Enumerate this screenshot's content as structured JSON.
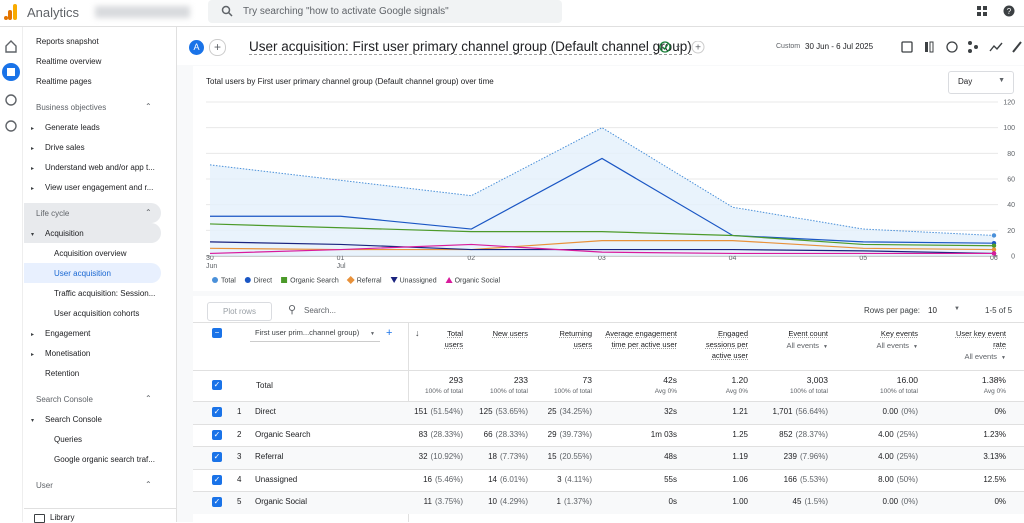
{
  "topbar": {
    "product": "Analytics",
    "search": "Try searching \"how to activate Google signals\""
  },
  "sidebar": {
    "top": [
      "Reports snapshot",
      "Realtime overview",
      "Realtime pages"
    ],
    "sections": [
      {
        "title": "Business objectives",
        "items": [
          {
            "label": "Generate leads",
            "children": []
          },
          {
            "label": "Drive sales",
            "children": []
          },
          {
            "label": "Understand web and/or app t...",
            "children": []
          },
          {
            "label": "View user engagement and r...",
            "children": []
          }
        ]
      },
      {
        "title": "Life cycle",
        "items": [
          {
            "label": "Acquisition",
            "children": [
              "Acquisition overview",
              "User acquisition",
              "Traffic acquisition: Session...",
              "User acquisition cohorts"
            ]
          },
          {
            "label": "Engagement",
            "children": []
          },
          {
            "label": "Monetisation",
            "children": []
          },
          {
            "label": "Retention"
          }
        ]
      },
      {
        "title": "Search Console",
        "items": [
          {
            "label": "Search Console",
            "children": [
              "Queries",
              "Google organic search traf..."
            ]
          }
        ]
      },
      {
        "title": "User",
        "items": []
      }
    ],
    "footer": "Library"
  },
  "header": {
    "title": "User acquisition: First user primary channel group (Default channel group)",
    "date_label": "Custom",
    "date_range": "30 Jun - 6 Jul 2025"
  },
  "chart_data": {
    "type": "line",
    "title": "Total users by First user primary channel group (Default channel group) over time",
    "interval": "Day",
    "categories": [
      "30 Jun",
      "01 Jul",
      "02",
      "03",
      "04",
      "05",
      "06"
    ],
    "ylim": [
      0,
      120
    ],
    "yticks": [
      0,
      20,
      40,
      60,
      80,
      100,
      120
    ],
    "grid": true,
    "series": [
      {
        "name": "Total",
        "color": "#4a90d9",
        "values": [
          71,
          59,
          47,
          100,
          38,
          21,
          16
        ]
      },
      {
        "name": "Direct",
        "color": "#1a56c4",
        "values": [
          31,
          31,
          21,
          76,
          16,
          11,
          10
        ]
      },
      {
        "name": "Organic Search",
        "color": "#4c9a2a",
        "values": [
          25,
          22,
          19,
          19,
          16,
          9,
          8
        ]
      },
      {
        "name": "Referral",
        "color": "#e8913a",
        "values": [
          6,
          5,
          5,
          12,
          12,
          6,
          5
        ]
      },
      {
        "name": "Unassigned",
        "color": "#1a237e",
        "values": [
          11,
          9,
          5,
          5,
          5,
          4,
          2
        ]
      },
      {
        "name": "Organic Social",
        "color": "#d81b9c",
        "values": [
          2,
          5,
          9,
          3,
          2,
          2,
          2
        ]
      }
    ]
  },
  "table": {
    "plot_rows": "Plot rows",
    "search": "Search...",
    "rows_per_page_label": "Rows per page:",
    "rows_per_page": "10",
    "pagination": "1-5 of 5",
    "dimension": "First user prim...channel group)",
    "columns": [
      {
        "label": "Total users"
      },
      {
        "label": "New users"
      },
      {
        "label": "Returning users"
      },
      {
        "label": "Average engagement time per active user"
      },
      {
        "label": "Engaged sessions per active user"
      },
      {
        "label": "Event count",
        "filter": "All events"
      },
      {
        "label": "Key events",
        "filter": "All events"
      },
      {
        "label": "User key event rate",
        "filter": "All events"
      }
    ],
    "totals": {
      "label": "Total",
      "cells": [
        [
          "293",
          "100% of total"
        ],
        [
          "233",
          "100% of total"
        ],
        [
          "73",
          "100% of total"
        ],
        [
          "42s",
          "Avg 0%"
        ],
        [
          "1.20",
          "Avg 0%"
        ],
        [
          "3,003",
          "100% of total"
        ],
        [
          "16.00",
          "100% of total"
        ],
        [
          "1.38%",
          "Avg 0%"
        ]
      ]
    },
    "rows": [
      {
        "index": "1",
        "name": "Direct",
        "cells": [
          [
            "151",
            "(51.54%)"
          ],
          [
            "125",
            "(53.65%)"
          ],
          [
            "25",
            "(34.25%)"
          ],
          [
            "32s"
          ],
          [
            "1.21"
          ],
          [
            "1,701",
            "(56.64%)"
          ],
          [
            "0.00",
            "(0%)"
          ],
          [
            "0%"
          ]
        ]
      },
      {
        "index": "2",
        "name": "Organic Search",
        "cells": [
          [
            "83",
            "(28.33%)"
          ],
          [
            "66",
            "(28.33%)"
          ],
          [
            "29",
            "(39.73%)"
          ],
          [
            "1m 03s"
          ],
          [
            "1.25"
          ],
          [
            "852",
            "(28.37%)"
          ],
          [
            "4.00",
            "(25%)"
          ],
          [
            "1.23%"
          ]
        ]
      },
      {
        "index": "3",
        "name": "Referral",
        "cells": [
          [
            "32",
            "(10.92%)"
          ],
          [
            "18",
            "(7.73%)"
          ],
          [
            "15",
            "(20.55%)"
          ],
          [
            "48s"
          ],
          [
            "1.19"
          ],
          [
            "239",
            "(7.96%)"
          ],
          [
            "4.00",
            "(25%)"
          ],
          [
            "3.13%"
          ]
        ]
      },
      {
        "index": "4",
        "name": "Unassigned",
        "cells": [
          [
            "16",
            "(5.46%)"
          ],
          [
            "14",
            "(6.01%)"
          ],
          [
            "3",
            "(4.11%)"
          ],
          [
            "55s"
          ],
          [
            "1.06"
          ],
          [
            "166",
            "(5.53%)"
          ],
          [
            "8.00",
            "(50%)"
          ],
          [
            "12.5%"
          ]
        ]
      },
      {
        "index": "5",
        "name": "Organic Social",
        "cells": [
          [
            "11",
            "(3.75%)"
          ],
          [
            "10",
            "(4.29%)"
          ],
          [
            "1",
            "(1.37%)"
          ],
          [
            "0s"
          ],
          [
            "1.00"
          ],
          [
            "45",
            "(1.5%)"
          ],
          [
            "0.00",
            "(0%)"
          ],
          [
            "0%"
          ]
        ]
      }
    ]
  }
}
